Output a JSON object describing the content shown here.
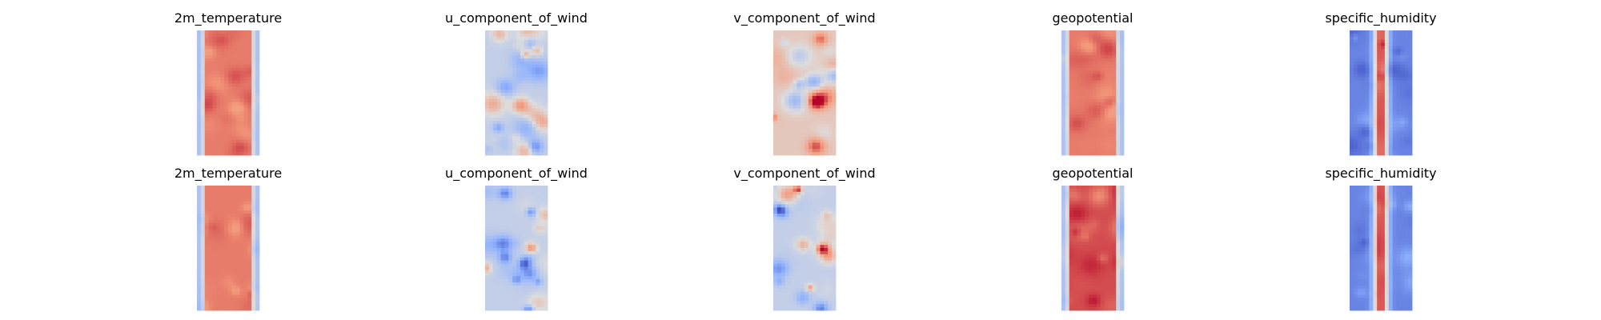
{
  "figure": {
    "rows": 2,
    "cols": 5
  },
  "chart_data": [
    {
      "type": "heatmap",
      "title": "2m_temperature",
      "colormap": "coolwarm",
      "pattern": "warm_core",
      "axes": "off"
    },
    {
      "type": "heatmap",
      "title": "u_component_of_wind",
      "colormap": "coolwarm",
      "pattern": "mixed_cool",
      "axes": "off"
    },
    {
      "type": "heatmap",
      "title": "v_component_of_wind",
      "colormap": "coolwarm",
      "pattern": "mixed_warm",
      "axes": "off"
    },
    {
      "type": "heatmap",
      "title": "geopotential",
      "colormap": "coolwarm",
      "pattern": "warm_core",
      "axes": "off"
    },
    {
      "type": "heatmap",
      "title": "specific_humidity",
      "colormap": "coolwarm",
      "pattern": "cool_thin_core",
      "axes": "off"
    },
    {
      "type": "heatmap",
      "title": "2m_temperature",
      "colormap": "coolwarm",
      "pattern": "warm_core",
      "axes": "off"
    },
    {
      "type": "heatmap",
      "title": "u_component_of_wind",
      "colormap": "coolwarm",
      "pattern": "mixed_cool",
      "axes": "off"
    },
    {
      "type": "heatmap",
      "title": "v_component_of_wind",
      "colormap": "coolwarm",
      "pattern": "mixed_cool",
      "axes": "off"
    },
    {
      "type": "heatmap",
      "title": "geopotential",
      "colormap": "coolwarm",
      "pattern": "warm_core_dark",
      "axes": "off"
    },
    {
      "type": "heatmap",
      "title": "specific_humidity",
      "colormap": "coolwarm",
      "pattern": "cool_thin_core",
      "axes": "off"
    }
  ]
}
